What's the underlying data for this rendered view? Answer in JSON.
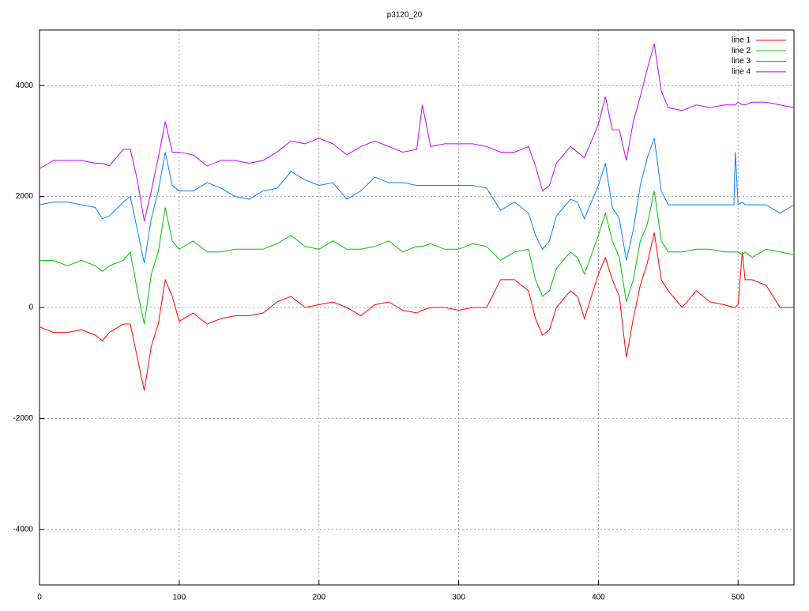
{
  "chart_data": {
    "type": "line",
    "title": "p3120_20",
    "x": [
      0,
      10,
      20,
      30,
      40,
      45,
      50,
      60,
      65,
      70,
      75,
      80,
      85,
      90,
      95,
      100,
      110,
      120,
      130,
      140,
      150,
      160,
      170,
      180,
      190,
      200,
      210,
      220,
      230,
      240,
      250,
      260,
      270,
      274,
      280,
      290,
      300,
      310,
      320,
      330,
      340,
      350,
      355,
      360,
      365,
      370,
      380,
      385,
      390,
      400,
      405,
      410,
      415,
      420,
      425,
      430,
      435,
      440,
      445,
      450,
      460,
      470,
      480,
      490,
      497,
      498,
      500,
      503,
      505,
      510,
      520,
      530,
      540
    ],
    "series": [
      {
        "name": "line 1",
        "color": "#ff0000",
        "values": [
          -350,
          -450,
          -450,
          -400,
          -500,
          -600,
          -450,
          -300,
          -300,
          -900,
          -1500,
          -700,
          -300,
          500,
          200,
          -250,
          -100,
          -300,
          -200,
          -150,
          -150,
          -100,
          100,
          200,
          0,
          50,
          100,
          0,
          -150,
          50,
          100,
          -50,
          -100,
          -50,
          0,
          0,
          -50,
          0,
          0,
          500,
          500,
          300,
          -200,
          -500,
          -400,
          0,
          300,
          200,
          -200,
          600,
          900,
          500,
          200,
          -900,
          -200,
          400,
          800,
          1350,
          500,
          300,
          0,
          300,
          100,
          50,
          0,
          0,
          50,
          1000,
          500,
          500,
          400,
          0,
          0
        ]
      },
      {
        "name": "line 2",
        "color": "#00c000",
        "values": [
          850,
          850,
          750,
          850,
          750,
          650,
          750,
          850,
          1000,
          300,
          -300,
          600,
          1000,
          1800,
          1200,
          1050,
          1200,
          1000,
          1000,
          1050,
          1050,
          1050,
          1150,
          1300,
          1100,
          1050,
          1200,
          1050,
          1050,
          1100,
          1200,
          1000,
          1100,
          1100,
          1150,
          1050,
          1050,
          1150,
          1100,
          850,
          1000,
          1050,
          500,
          200,
          300,
          700,
          1000,
          900,
          600,
          1300,
          1700,
          1200,
          900,
          100,
          500,
          1200,
          1500,
          2100,
          1200,
          1000,
          1000,
          1050,
          1050,
          1000,
          1000,
          1000,
          1000,
          950,
          1000,
          900,
          1050,
          1000,
          950
        ]
      },
      {
        "name": "line 3",
        "color": "#0080ff",
        "values": [
          1850,
          1900,
          1900,
          1850,
          1800,
          1600,
          1650,
          1900,
          2000,
          1400,
          800,
          1600,
          2100,
          2800,
          2200,
          2100,
          2100,
          2250,
          2150,
          2000,
          1950,
          2100,
          2150,
          2450,
          2300,
          2200,
          2250,
          1950,
          2100,
          2350,
          2250,
          2250,
          2200,
          2200,
          2200,
          2200,
          2200,
          2200,
          2150,
          1750,
          1900,
          1700,
          1300,
          1050,
          1200,
          1650,
          1950,
          1900,
          1600,
          2200,
          2600,
          1800,
          1600,
          850,
          1400,
          2200,
          2700,
          3050,
          2100,
          1850,
          1850,
          1850,
          1850,
          1850,
          1850,
          2800,
          1850,
          1900,
          1850,
          1850,
          1850,
          1700,
          1850
        ]
      },
      {
        "name": "line 4",
        "color": "#c000ff",
        "values": [
          2500,
          2650,
          2650,
          2650,
          2600,
          2600,
          2550,
          2850,
          2850,
          2300,
          1550,
          2100,
          2700,
          3350,
          2800,
          2800,
          2750,
          2550,
          2650,
          2650,
          2600,
          2650,
          2800,
          3000,
          2950,
          3050,
          2950,
          2750,
          2900,
          3000,
          2900,
          2800,
          2850,
          3650,
          2900,
          2950,
          2950,
          2950,
          2900,
          2800,
          2800,
          2900,
          2550,
          2100,
          2200,
          2600,
          2900,
          2800,
          2700,
          3300,
          3800,
          3200,
          3200,
          2650,
          3350,
          3800,
          4300,
          4750,
          3900,
          3600,
          3550,
          3650,
          3600,
          3650,
          3650,
          3650,
          3700,
          3650,
          3650,
          3700,
          3700,
          3650,
          3600
        ]
      }
    ],
    "xlim": [
      0,
      540
    ],
    "xticks": [
      0,
      100,
      200,
      300,
      400,
      500
    ],
    "ylim": [
      -5000,
      5000
    ],
    "yticks": [
      -4000,
      -2000,
      0,
      2000,
      4000
    ],
    "grid": true,
    "legend": "top-right"
  }
}
